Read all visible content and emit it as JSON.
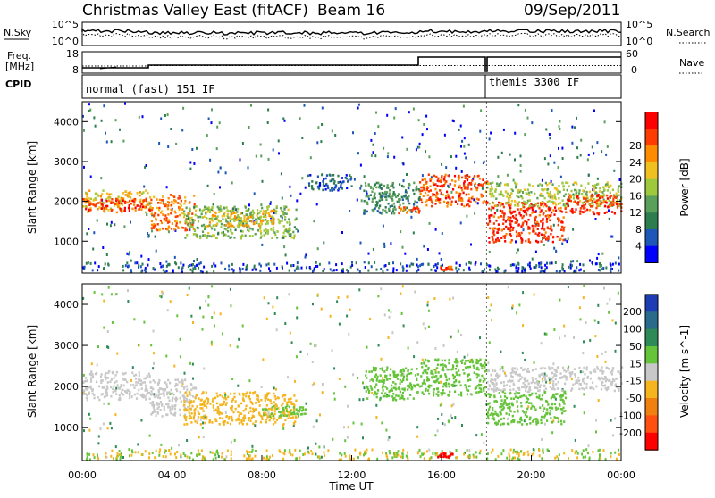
{
  "header": {
    "title": "Christmas Valley East (fitACF)",
    "beam": "Beam 16",
    "date": "09/Sep/2011"
  },
  "strip_nsky": {
    "left_label": "N.Sky",
    "right_label": "N.Search",
    "left_ticks": [
      "10^5",
      "10^0"
    ],
    "right_ticks": [
      "10^5",
      "10^0"
    ]
  },
  "strip_freq": {
    "left_label_line1": "Freq.",
    "left_label_line2": "[MHz]",
    "right_label": "Nave",
    "left_ticks": [
      "18",
      "8"
    ],
    "right_ticks": [
      "60",
      "0"
    ]
  },
  "strip_cpid": {
    "label": "CPID",
    "segments": [
      {
        "text": "normal (fast) 151 IF",
        "start_hour": 0,
        "end_hour": 18
      },
      {
        "text": "themis 3300 IF",
        "start_hour": 18,
        "end_hour": 24
      }
    ]
  },
  "chart_data": [
    {
      "type": "heatmap",
      "name": "power",
      "ylabel": "Slant Range [km]",
      "xlabel": "",
      "xlim": [
        0,
        24
      ],
      "ylim": [
        200,
        4500
      ],
      "y_ticks": [
        "1000",
        "2000",
        "3000",
        "4000"
      ],
      "colorbar": {
        "label": "Power [dB]",
        "ticks": [
          "4",
          "8",
          "12",
          "16",
          "20",
          "24",
          "28"
        ],
        "colors": [
          "#0000ff",
          "#1f57b8",
          "#2e7d4f",
          "#5aa05a",
          "#9ec93c",
          "#f0c020",
          "#ff8c00",
          "#ff3c00",
          "#ff0000"
        ]
      },
      "bands": [
        {
          "t0": 0.0,
          "t1": 3.0,
          "r0": 1750,
          "r1": 2300,
          "level": 20
        },
        {
          "t0": 0.0,
          "t1": 3.0,
          "r0": 1800,
          "r1": 2100,
          "level": 28
        },
        {
          "t0": 3.0,
          "t1": 5.0,
          "r0": 1300,
          "r1": 2200,
          "level": 24
        },
        {
          "t0": 4.5,
          "t1": 9.5,
          "r0": 1100,
          "r1": 1900,
          "level": 14
        },
        {
          "t0": 5.5,
          "t1": 8.5,
          "r0": 1400,
          "r1": 1800,
          "level": 20
        },
        {
          "t0": 10.0,
          "t1": 12.0,
          "r0": 2300,
          "r1": 2700,
          "level": 6
        },
        {
          "t0": 12.5,
          "t1": 15.0,
          "r0": 1700,
          "r1": 2500,
          "level": 10
        },
        {
          "t0": 14.0,
          "t1": 15.0,
          "r0": 1700,
          "r1": 1900,
          "level": 26
        },
        {
          "t0": 15.0,
          "t1": 18.0,
          "r0": 1900,
          "r1": 2700,
          "level": 26
        },
        {
          "t0": 18.0,
          "t1": 21.5,
          "r0": 1000,
          "r1": 2000,
          "level": 28
        },
        {
          "t0": 18.0,
          "t1": 24.0,
          "r0": 1900,
          "r1": 2500,
          "level": 16
        },
        {
          "t0": 21.5,
          "t1": 24.0,
          "r0": 1700,
          "r1": 2200,
          "level": 28
        },
        {
          "t0": 15.8,
          "t1": 16.5,
          "r0": 300,
          "r1": 400,
          "level": 28
        }
      ]
    },
    {
      "type": "heatmap",
      "name": "velocity",
      "ylabel": "Slant Range [km]",
      "xlabel": "Time UT",
      "xlim": [
        0,
        24
      ],
      "ylim": [
        200,
        4500
      ],
      "x_ticks": [
        "00:00",
        "04:00",
        "08:00",
        "12:00",
        "16:00",
        "20:00",
        "00:00"
      ],
      "y_ticks": [
        "1000",
        "2000",
        "3000",
        "4000"
      ],
      "colorbar": {
        "label": "Velocity [m s^-1]",
        "ticks": [
          "200",
          "100",
          "50",
          "15",
          "-15",
          "-50",
          "-100",
          "-200"
        ],
        "colors": [
          "#1e3cb4",
          "#2a6a8a",
          "#2e8b57",
          "#66c43a",
          "#c8c8c8",
          "#f5b51e",
          "#f08010",
          "#ff5010",
          "#ff0000"
        ]
      },
      "bands": [
        {
          "t0": 0.0,
          "t1": 3.0,
          "r0": 1700,
          "r1": 2400,
          "level": 0
        },
        {
          "t0": 3.0,
          "t1": 5.0,
          "r0": 1300,
          "r1": 2200,
          "level": 0
        },
        {
          "t0": 4.5,
          "t1": 9.5,
          "r0": 1100,
          "r1": 1900,
          "level": -40
        },
        {
          "t0": 8.0,
          "t1": 10.0,
          "r0": 1300,
          "r1": 1600,
          "level": 40
        },
        {
          "t0": 12.5,
          "t1": 15.0,
          "r0": 1700,
          "r1": 2500,
          "level": 40
        },
        {
          "t0": 15.0,
          "t1": 18.0,
          "r0": 1800,
          "r1": 2700,
          "level": 40
        },
        {
          "t0": 18.0,
          "t1": 24.0,
          "r0": 1900,
          "r1": 2500,
          "level": 0
        },
        {
          "t0": 18.0,
          "t1": 21.5,
          "r0": 1100,
          "r1": 1900,
          "level": 40
        },
        {
          "t0": 15.8,
          "t1": 16.5,
          "r0": 300,
          "r1": 400,
          "level": -250
        }
      ]
    }
  ]
}
